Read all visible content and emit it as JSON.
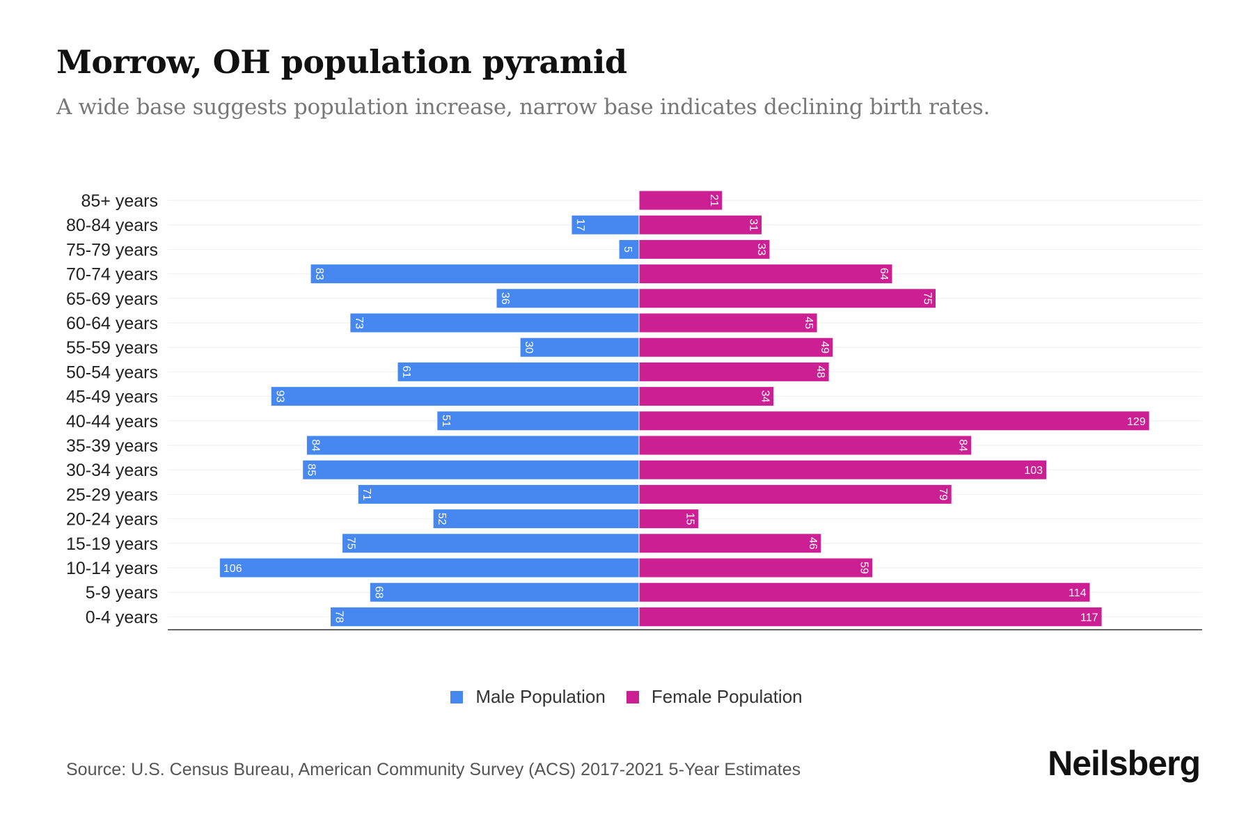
{
  "chart_data": {
    "type": "bar",
    "orientation": "horizontal-pyramid",
    "title": "Morrow, OH population pyramid",
    "subtitle": "A wide base suggests population increase, narrow base indicates declining birth rates.",
    "categories": [
      "85+ years",
      "80-84 years",
      "75-79 years",
      "70-74 years",
      "65-69 years",
      "60-64 years",
      "55-59 years",
      "50-54 years",
      "45-49 years",
      "40-44 years",
      "35-39 years",
      "30-34 years",
      "25-29 years",
      "20-24 years",
      "15-19 years",
      "10-14 years",
      "5-9 years",
      "0-4 years"
    ],
    "series": [
      {
        "name": "Male Population",
        "color": "#4688f0",
        "values": [
          0,
          17,
          5,
          83,
          36,
          73,
          30,
          61,
          93,
          51,
          84,
          85,
          71,
          52,
          75,
          106,
          68,
          78
        ]
      },
      {
        "name": "Female Population",
        "color": "#cb1f93",
        "values": [
          21,
          31,
          33,
          64,
          75,
          45,
          49,
          48,
          34,
          129,
          84,
          103,
          79,
          15,
          46,
          59,
          114,
          117
        ]
      }
    ],
    "xlim": [
      -119,
      143
    ],
    "grid": true,
    "legend_position": "bottom"
  },
  "source": "Source: U.S. Census Bureau, American Community Survey (ACS) 2017-2021 5-Year Estimates",
  "brand": "Neilsberg"
}
